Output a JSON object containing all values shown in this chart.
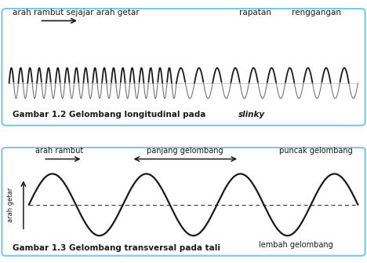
{
  "bg_color": "#ffffff",
  "box_color": "#7ec8e3",
  "text_color": "#1a1a1a",
  "fig1_title": "Gambar 1.2 Gelombang longitudinal pada ",
  "fig1_title_italic": "slinky",
  "fig2_title": "Gambar 1.3 Gelombang transversal pada tali",
  "label1_left": "arah rambut sejajar arah getar",
  "label1_right1": "rapatan",
  "label1_right2": "renggangan",
  "label2_arah_rambut": "arah rambut",
  "label2_panjang": "panjang gelombang",
  "label2_puncak": "puncak gelombang",
  "label2_lembah": "lembah gelombang",
  "label2_arah_getar": "arah getar",
  "n_compressed": 18,
  "n_expanded": 10,
  "coil_amplitude": 0.38
}
